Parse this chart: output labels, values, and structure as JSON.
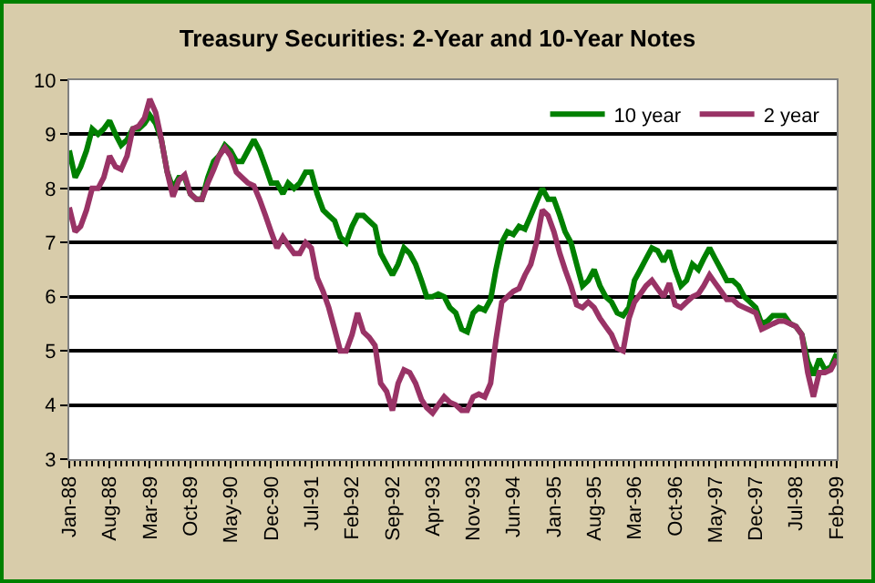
{
  "chart_data": {
    "type": "line",
    "title": "Treasury Securities: 2-Year and 10-Year Notes",
    "x": [
      "1988-01",
      "1988-02",
      "1988-03",
      "1988-04",
      "1988-05",
      "1988-06",
      "1988-07",
      "1988-08",
      "1988-09",
      "1988-10",
      "1988-11",
      "1988-12",
      "1989-01",
      "1989-02",
      "1989-03",
      "1989-04",
      "1989-05",
      "1989-06",
      "1989-07",
      "1989-08",
      "1989-09",
      "1989-10",
      "1989-11",
      "1989-12",
      "1990-01",
      "1990-02",
      "1990-03",
      "1990-04",
      "1990-05",
      "1990-06",
      "1990-07",
      "1990-08",
      "1990-09",
      "1990-10",
      "1990-11",
      "1990-12",
      "1991-01",
      "1991-02",
      "1991-03",
      "1991-04",
      "1991-05",
      "1991-06",
      "1991-07",
      "1991-08",
      "1991-09",
      "1991-10",
      "1991-11",
      "1991-12",
      "1992-01",
      "1992-02",
      "1992-03",
      "1992-04",
      "1992-05",
      "1992-06",
      "1992-07",
      "1992-08",
      "1992-09",
      "1992-10",
      "1992-11",
      "1992-12",
      "1993-01",
      "1993-02",
      "1993-03",
      "1993-04",
      "1993-05",
      "1993-06",
      "1993-07",
      "1993-08",
      "1993-09",
      "1993-10",
      "1993-11",
      "1993-12",
      "1994-01",
      "1994-02",
      "1994-03",
      "1994-04",
      "1994-05",
      "1994-06",
      "1994-07",
      "1994-08",
      "1994-09",
      "1994-10",
      "1994-11",
      "1994-12",
      "1995-01",
      "1995-02",
      "1995-03",
      "1995-04",
      "1995-05",
      "1995-06",
      "1995-07",
      "1995-08",
      "1995-09",
      "1995-10",
      "1995-11",
      "1995-12",
      "1996-01",
      "1996-02",
      "1996-03",
      "1996-04",
      "1996-05",
      "1996-06",
      "1996-07",
      "1996-08",
      "1996-09",
      "1996-10",
      "1996-11",
      "1996-12",
      "1997-01",
      "1997-02",
      "1997-03",
      "1997-04",
      "1997-05",
      "1997-06",
      "1997-07",
      "1997-08",
      "1997-09",
      "1997-10",
      "1997-11",
      "1997-12",
      "1998-01",
      "1998-02",
      "1998-03",
      "1998-04",
      "1998-05",
      "1998-06",
      "1998-07",
      "1998-08",
      "1998-09",
      "1998-10",
      "1998-11",
      "1998-12",
      "1999-01",
      "1999-02"
    ],
    "series": [
      {
        "name": "10 year",
        "color": "#008000",
        "values": [
          8.7,
          8.2,
          8.4,
          8.7,
          9.1,
          9.0,
          9.1,
          9.25,
          9.0,
          8.8,
          8.9,
          9.1,
          9.1,
          9.2,
          9.35,
          9.2,
          8.9,
          8.3,
          8.0,
          8.2,
          8.2,
          7.9,
          7.8,
          7.8,
          8.2,
          8.5,
          8.6,
          8.8,
          8.7,
          8.5,
          8.5,
          8.7,
          8.9,
          8.7,
          8.4,
          8.1,
          8.1,
          7.9,
          8.1,
          8.0,
          8.1,
          8.3,
          8.3,
          7.9,
          7.6,
          7.5,
          7.4,
          7.1,
          7.0,
          7.3,
          7.5,
          7.5,
          7.4,
          7.3,
          6.8,
          6.6,
          6.4,
          6.6,
          6.9,
          6.8,
          6.6,
          6.3,
          6.0,
          6.0,
          6.05,
          6.0,
          5.8,
          5.7,
          5.4,
          5.35,
          5.7,
          5.8,
          5.75,
          5.95,
          6.5,
          7.0,
          7.2,
          7.15,
          7.3,
          7.25,
          7.5,
          7.75,
          8.0,
          7.8,
          7.8,
          7.5,
          7.2,
          7.0,
          6.6,
          6.2,
          6.3,
          6.5,
          6.2,
          6.0,
          5.9,
          5.7,
          5.65,
          5.8,
          6.3,
          6.5,
          6.7,
          6.9,
          6.85,
          6.65,
          6.85,
          6.5,
          6.2,
          6.3,
          6.6,
          6.5,
          6.7,
          6.9,
          6.7,
          6.5,
          6.3,
          6.3,
          6.2,
          6.0,
          5.9,
          5.8,
          5.5,
          5.55,
          5.65,
          5.65,
          5.65,
          5.5,
          5.45,
          5.3,
          4.8,
          4.55,
          4.85,
          4.65,
          4.7,
          4.95
        ]
      },
      {
        "name": "2 year",
        "color": "#993366",
        "values": [
          7.65,
          7.2,
          7.3,
          7.6,
          8.0,
          8.0,
          8.2,
          8.6,
          8.4,
          8.35,
          8.6,
          9.1,
          9.15,
          9.3,
          9.65,
          9.4,
          8.9,
          8.3,
          7.85,
          8.15,
          8.25,
          7.9,
          7.8,
          7.8,
          8.1,
          8.35,
          8.6,
          8.75,
          8.6,
          8.3,
          8.2,
          8.1,
          8.05,
          7.8,
          7.5,
          7.2,
          6.9,
          7.1,
          6.95,
          6.8,
          6.8,
          7.0,
          6.9,
          6.35,
          6.1,
          5.8,
          5.4,
          5.0,
          5.0,
          5.3,
          5.7,
          5.35,
          5.25,
          5.1,
          4.4,
          4.25,
          3.9,
          4.4,
          4.65,
          4.6,
          4.4,
          4.1,
          3.95,
          3.85,
          4.0,
          4.15,
          4.05,
          4.0,
          3.9,
          3.9,
          4.15,
          4.2,
          4.15,
          4.4,
          5.2,
          5.9,
          6.0,
          6.1,
          6.15,
          6.4,
          6.6,
          7.0,
          7.6,
          7.5,
          7.2,
          6.8,
          6.5,
          6.2,
          5.85,
          5.8,
          5.9,
          5.8,
          5.6,
          5.45,
          5.3,
          5.05,
          5.0,
          5.6,
          5.9,
          6.05,
          6.2,
          6.3,
          6.15,
          6.0,
          6.25,
          5.85,
          5.8,
          5.9,
          6.0,
          6.05,
          6.2,
          6.4,
          6.25,
          6.1,
          5.95,
          5.95,
          5.85,
          5.8,
          5.75,
          5.7,
          5.4,
          5.45,
          5.5,
          5.55,
          5.55,
          5.5,
          5.45,
          5.3,
          4.6,
          4.15,
          4.6,
          4.6,
          4.65,
          4.85
        ]
      }
    ],
    "xlim": [
      "1988-01",
      "1999-02"
    ],
    "xticks": [
      {
        "value": "1988-01",
        "label": "Jan-88"
      },
      {
        "value": "1988-08",
        "label": "Aug-88"
      },
      {
        "value": "1989-03",
        "label": "Mar-89"
      },
      {
        "value": "1989-10",
        "label": "Oct-89"
      },
      {
        "value": "1990-05",
        "label": "May-90"
      },
      {
        "value": "1990-12",
        "label": "Dec-90"
      },
      {
        "value": "1991-07",
        "label": "Jul-91"
      },
      {
        "value": "1992-02",
        "label": "Feb-92"
      },
      {
        "value": "1992-09",
        "label": "Sep-92"
      },
      {
        "value": "1993-04",
        "label": "Apr-93"
      },
      {
        "value": "1993-11",
        "label": "Nov-93"
      },
      {
        "value": "1994-06",
        "label": "Jun-94"
      },
      {
        "value": "1995-01",
        "label": "Jan-95"
      },
      {
        "value": "1995-08",
        "label": "Aug-95"
      },
      {
        "value": "1996-03",
        "label": "Mar-96"
      },
      {
        "value": "1996-10",
        "label": "Oct-96"
      },
      {
        "value": "1997-05",
        "label": "May-97"
      },
      {
        "value": "1997-12",
        "label": "Dec-97"
      },
      {
        "value": "1998-07",
        "label": "Jul-98"
      },
      {
        "value": "1999-02",
        "label": "Feb-99"
      }
    ],
    "ylim": [
      3,
      10
    ],
    "yticks": [
      3,
      4,
      5,
      6,
      7,
      8,
      9,
      10
    ],
    "grid": "y",
    "legend": "top right"
  }
}
